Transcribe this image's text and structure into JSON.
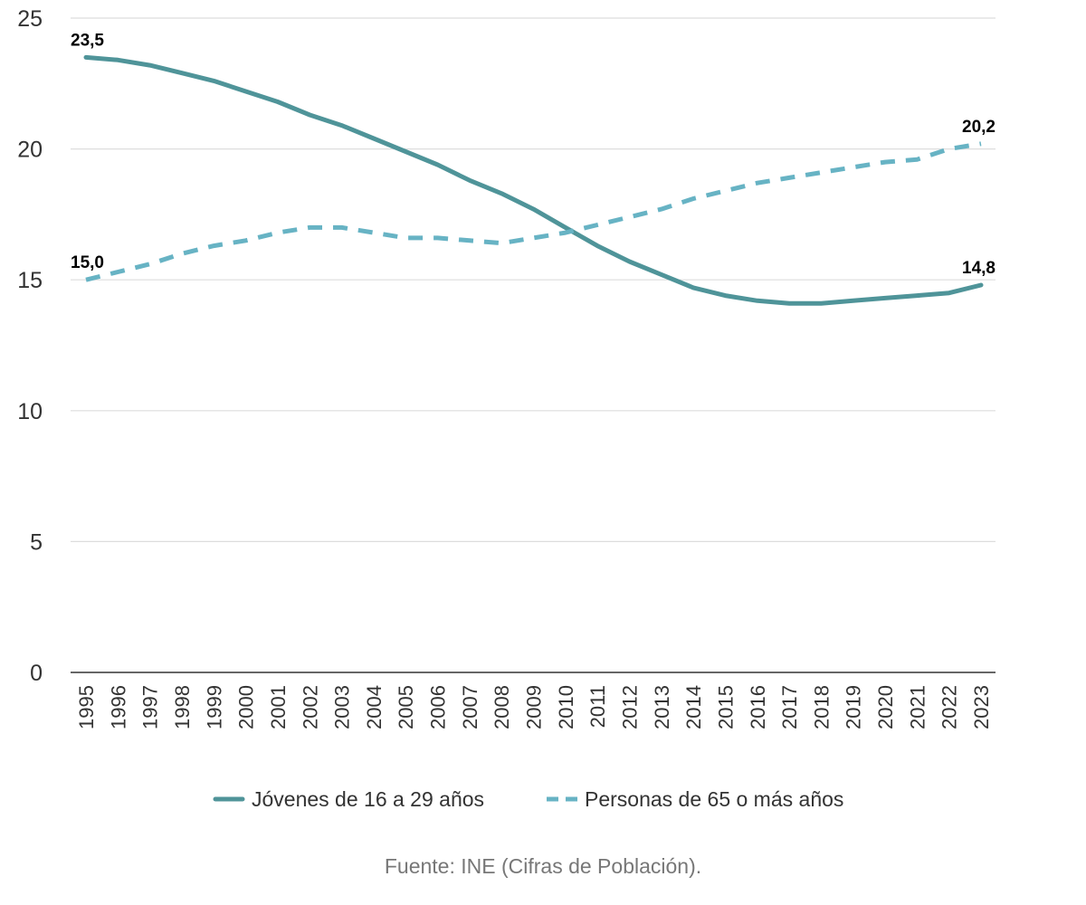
{
  "chart_data": {
    "type": "line",
    "x": [
      "1995",
      "1996",
      "1997",
      "1998",
      "1999",
      "2000",
      "2001",
      "2002",
      "2003",
      "2004",
      "2005",
      "2006",
      "2007",
      "2008",
      "2009",
      "2010",
      "2011",
      "2012",
      "2013",
      "2014",
      "2015",
      "2016",
      "2017",
      "2018",
      "2019",
      "2020",
      "2021",
      "2022",
      "2023"
    ],
    "ylim": [
      0,
      25
    ],
    "yticks": [
      "0",
      "5",
      "10",
      "15",
      "20",
      "25"
    ],
    "grid": true,
    "legend_position": "bottom",
    "series": [
      {
        "name": "Jóvenes de 16 a 29 años",
        "color": "#4f9499",
        "style": "solid",
        "values": [
          23.5,
          23.4,
          23.2,
          22.9,
          22.6,
          22.2,
          21.8,
          21.3,
          20.9,
          20.4,
          19.9,
          19.4,
          18.8,
          18.3,
          17.7,
          17.0,
          16.3,
          15.7,
          15.2,
          14.7,
          14.4,
          14.2,
          14.1,
          14.1,
          14.2,
          14.3,
          14.4,
          14.5,
          14.8
        ],
        "labels": [
          {
            "index": 0,
            "text": "23,5"
          },
          {
            "index": 28,
            "text": "14,8"
          }
        ]
      },
      {
        "name": "Personas de 65 o más años",
        "color": "#67b3c4",
        "style": "dashed",
        "values": [
          15.0,
          15.3,
          15.6,
          16.0,
          16.3,
          16.5,
          16.8,
          17.0,
          17.0,
          16.8,
          16.6,
          16.6,
          16.5,
          16.4,
          16.6,
          16.8,
          17.1,
          17.4,
          17.7,
          18.1,
          18.4,
          18.7,
          18.9,
          19.1,
          19.3,
          19.5,
          19.6,
          20.0,
          20.2
        ],
        "labels": [
          {
            "index": 0,
            "text": "15,0"
          },
          {
            "index": 28,
            "text": "20,2"
          }
        ]
      }
    ],
    "source": "Fuente: INE (Cifras de Población)."
  }
}
